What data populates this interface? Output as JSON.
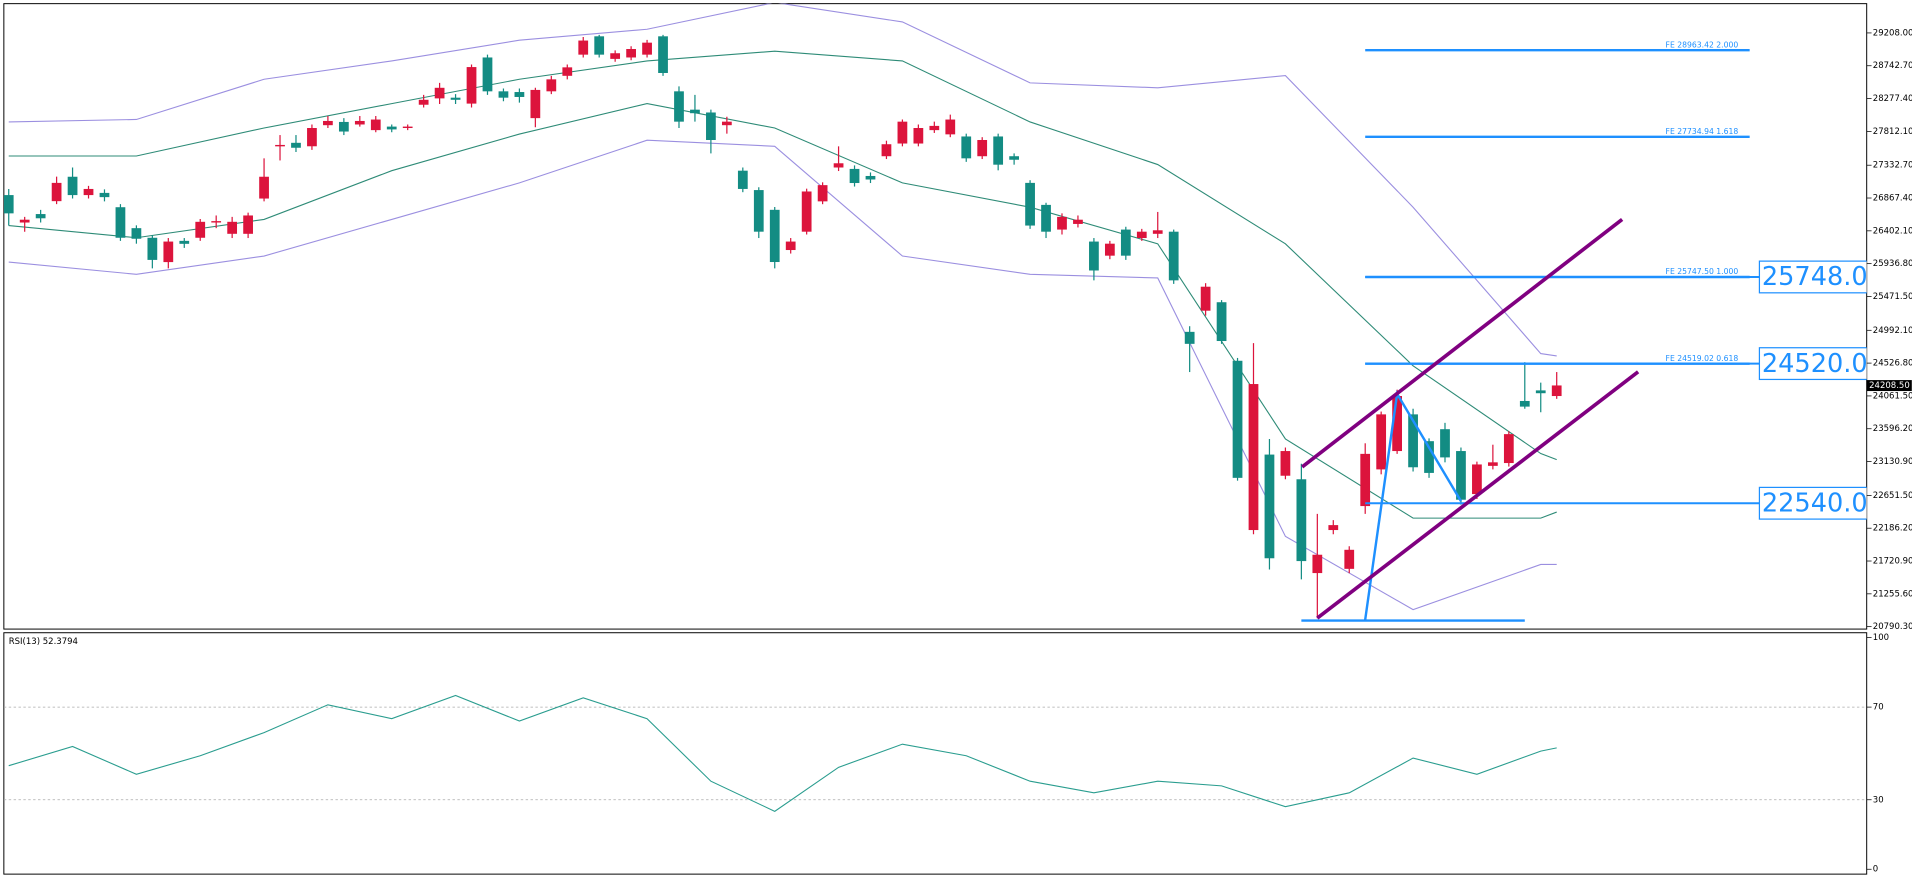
{
  "chart_data": [
    {
      "type": "candlestick",
      "open": [
        26909,
        26520,
        26640,
        26823,
        27169,
        26909,
        26940,
        26737,
        26440,
        26304,
        25959,
        26260,
        26304,
        26520,
        26360,
        26360,
        26860,
        27600,
        27650,
        27601,
        27900,
        27946,
        27910,
        27830,
        27880,
        27860,
        28190,
        28280,
        28290,
        28206,
        28860,
        28380,
        28370,
        28000,
        28380,
        28600,
        28900,
        29160,
        28840,
        28860,
        28900,
        29160,
        28380,
        28120,
        28080,
        27900,
        27255,
        26980,
        26700,
        26130,
        26390,
        26820,
        27300,
        27280,
        27180,
        27460,
        27640,
        27640,
        27830,
        27770,
        27740,
        27460,
        27740,
        27460,
        27082,
        26770,
        26420,
        26500,
        26250,
        26050,
        26420,
        26300,
        26360,
        26390,
        24970,
        25270,
        25390,
        24560,
        22160,
        23230,
        22930,
        22880,
        21550,
        22160,
        21610,
        22500,
        23020,
        23280,
        23800,
        23420,
        23590,
        23280,
        22670,
        23070,
        23110,
        23990,
        24140,
        24060
      ],
      "high": [
        26996,
        26600,
        26700,
        27170,
        27300,
        27040,
        26990,
        26780,
        26480,
        26340,
        26300,
        26300,
        26570,
        26620,
        26600,
        26660,
        27430,
        27760,
        27760,
        27910,
        28030,
        28000,
        28030,
        28030,
        27910,
        27910,
        28330,
        28500,
        28340,
        28760,
        28900,
        28420,
        28420,
        28430,
        28600,
        28760,
        29150,
        29180,
        28960,
        29020,
        29110,
        29180,
        28450,
        28330,
        28120,
        28020,
        27300,
        27020,
        26740,
        26300,
        27000,
        27090,
        27600,
        27330,
        27230,
        27680,
        27980,
        27910,
        27950,
        28050,
        27780,
        27730,
        27780,
        27500,
        27120,
        26800,
        26650,
        26620,
        26300,
        26260,
        26460,
        26430,
        26670,
        26420,
        25050,
        25660,
        25420,
        24600,
        24810,
        23450,
        23330,
        23100,
        22390,
        22300,
        21930,
        23390,
        23840,
        24150,
        23880,
        23460,
        23680,
        23330,
        23130,
        23370,
        23560,
        24540,
        24250,
        24400
      ],
      "low": [
        26477,
        26390,
        26520,
        26780,
        26860,
        26860,
        26820,
        26260,
        26220,
        25870,
        25870,
        26160,
        26260,
        26440,
        26300,
        26300,
        26820,
        27400,
        27520,
        27550,
        27860,
        27760,
        27880,
        27800,
        27800,
        27830,
        28150,
        28200,
        28200,
        28150,
        28330,
        28240,
        28220,
        27870,
        28340,
        28550,
        28860,
        28860,
        28800,
        28820,
        28860,
        28600,
        27860,
        27950,
        27500,
        27780,
        26950,
        26300,
        25870,
        26080,
        26350,
        26780,
        27250,
        27030,
        27080,
        27420,
        27600,
        27600,
        27790,
        27730,
        27380,
        27420,
        27260,
        27340,
        26430,
        26300,
        26350,
        26450,
        25700,
        26000,
        25990,
        26260,
        26300,
        25650,
        24400,
        25200,
        24800,
        22860,
        22100,
        21600,
        22880,
        21460,
        20910,
        22100,
        21550,
        22390,
        22950,
        23240,
        22990,
        22900,
        23120,
        22520,
        22600,
        23020,
        23060,
        23880,
        23830,
        24020
      ],
      "close": [
        26650,
        26560,
        26580,
        27082,
        26909,
        26996,
        26880,
        26304,
        26290,
        25990,
        26250,
        26218,
        26530,
        26540,
        26530,
        26620,
        27169,
        27620,
        27580,
        27860,
        27960,
        27810,
        27960,
        27980,
        27840,
        27880,
        28260,
        28430,
        28260,
        28724,
        28380,
        28290,
        28300,
        28400,
        28550,
        28720,
        29100,
        28900,
        28920,
        28980,
        29070,
        28640,
        27950,
        28070,
        27690,
        27950,
        26996,
        26390,
        25960,
        26250,
        26960,
        27050,
        27360,
        27080,
        27130,
        27630,
        27950,
        27860,
        27890,
        27980,
        27430,
        27690,
        27340,
        27410,
        26477,
        26390,
        26600,
        26560,
        25840,
        26220,
        26050,
        26390,
        26410,
        25700,
        24800,
        25610,
        24840,
        22900,
        24230,
        21760,
        23280,
        21720,
        21810,
        22230,
        21880,
        23240,
        23800,
        24060,
        23050,
        22970,
        23190,
        22590,
        23090,
        23120,
        23520,
        23910,
        24100,
        24210
      ],
      "up_color": "#dc143c",
      "down_color": "#138c83",
      "ylim": [
        20756,
        29623
      ],
      "yticks": [
        {
          "value": 29208,
          "label": "29208.00"
        },
        {
          "value": 28742.7,
          "label": "28742.70"
        },
        {
          "value": 28277.4,
          "label": "28277.40"
        },
        {
          "value": 27812.1,
          "label": "27812.10"
        },
        {
          "value": 27332.7,
          "label": "27332.70"
        },
        {
          "value": 26867.4,
          "label": "26867.40"
        },
        {
          "value": 26402.1,
          "label": "26402.10"
        },
        {
          "value": 25936.8,
          "label": "25936.80"
        },
        {
          "value": 25471.5,
          "label": "25471.50"
        },
        {
          "value": 24992.1,
          "label": "24992.10"
        },
        {
          "value": 24526.8,
          "label": "24526.80"
        },
        {
          "value": 24061.5,
          "label": "24061.50"
        },
        {
          "value": 23596.2,
          "label": "23596.20"
        },
        {
          "value": 23130.9,
          "label": "23130.90"
        },
        {
          "value": 22651.5,
          "label": "22651.50"
        },
        {
          "value": 22186.2,
          "label": "22186.20"
        },
        {
          "value": 21720.9,
          "label": "21720.90"
        },
        {
          "value": 21255.6,
          "label": "21255.60"
        },
        {
          "value": 20790.3,
          "label": "20790.30"
        }
      ],
      "last_price": {
        "value": 24208.5,
        "label": "24208.50"
      },
      "overlays": [
        {
          "color": "#9b8fe0",
          "x": [
            0,
            8,
            16,
            24,
            32,
            40,
            48,
            56,
            64,
            72,
            80,
            88,
            96,
            97
          ],
          "values": [
            27946,
            27981,
            28551,
            28811,
            29105,
            29260,
            29640,
            29364,
            28500,
            28430,
            28603,
            26737,
            24662,
            24628
          ]
        },
        {
          "color": "#2e8b77",
          "x": [
            0,
            8,
            16,
            24,
            32,
            40,
            48,
            56,
            64,
            72,
            80,
            88,
            96,
            97
          ],
          "values": [
            27463,
            27463,
            27860,
            28206,
            28551,
            28811,
            28949,
            28811,
            27946,
            27342,
            26218,
            24489,
            23245,
            23159
          ]
        },
        {
          "color": "#2e8b77",
          "x": [
            0,
            8,
            16,
            24,
            32,
            40,
            48,
            56,
            64,
            72,
            80,
            88,
            96,
            97
          ],
          "values": [
            26477,
            26304,
            26564,
            27255,
            27774,
            28206,
            27860,
            27082,
            26737,
            26218,
            23452,
            22329,
            22329,
            22415
          ]
        },
        {
          "color": "#9b8fe0",
          "x": [
            0,
            8,
            16,
            24,
            32,
            40,
            48,
            56,
            64,
            72,
            80,
            88,
            96,
            97
          ],
          "values": [
            25959,
            25786,
            26045,
            26564,
            27082,
            27687,
            27601,
            26045,
            25786,
            25734,
            22070,
            21032,
            21672,
            21672
          ]
        }
      ],
      "fibonacci": [
        {
          "value": 28963.42,
          "label": "FE 28963.42  2.000"
        },
        {
          "value": 27734.94,
          "label": "FE 27734.94  1.618"
        },
        {
          "value": 25747.5,
          "label": "FE 25747.50  1.000"
        },
        {
          "value": 24519.02,
          "label": "FE 24519.02  0.618"
        }
      ],
      "levels": [
        {
          "value": 25748,
          "label": "25748.0"
        },
        {
          "value": 24520,
          "label": "24520.0"
        },
        {
          "value": 22540,
          "label": "22540.0"
        }
      ],
      "fe_points": {
        "color": "#1e90ff",
        "x": [
          85,
          87,
          91
        ],
        "values": [
          20890,
          24092,
          22570
        ]
      },
      "low_line": {
        "color": "#1e90ff",
        "x": [
          81,
          95
        ],
        "values": [
          20877,
          20877
        ]
      },
      "channel": {
        "color": "#800080",
        "lines": [
          {
            "x": [
              81.05,
              101.1
            ],
            "values": [
              23055,
              26564
            ]
          },
          {
            "x": [
              82,
              102.1
            ],
            "values": [
              20912,
              24403
            ]
          }
        ]
      }
    },
    {
      "type": "line",
      "title": "RSI(13) 52.3794",
      "x": [
        0,
        4,
        8,
        12,
        16,
        20,
        24,
        28,
        32,
        36,
        40,
        44,
        48,
        52,
        56,
        60,
        64,
        68,
        72,
        76,
        80,
        84,
        88,
        92,
        96,
        97
      ],
      "values": [
        44.7,
        53,
        41,
        49,
        59,
        71,
        65,
        75,
        64,
        74,
        65,
        38,
        25,
        44,
        54,
        49,
        38,
        33,
        38,
        36,
        27,
        33,
        48,
        41,
        51,
        52.4
      ],
      "color": "#2a9d8f",
      "ylim": [
        0,
        100
      ],
      "yticks": [
        0,
        30,
        70,
        100
      ],
      "levels": [
        70,
        30
      ]
    }
  ]
}
